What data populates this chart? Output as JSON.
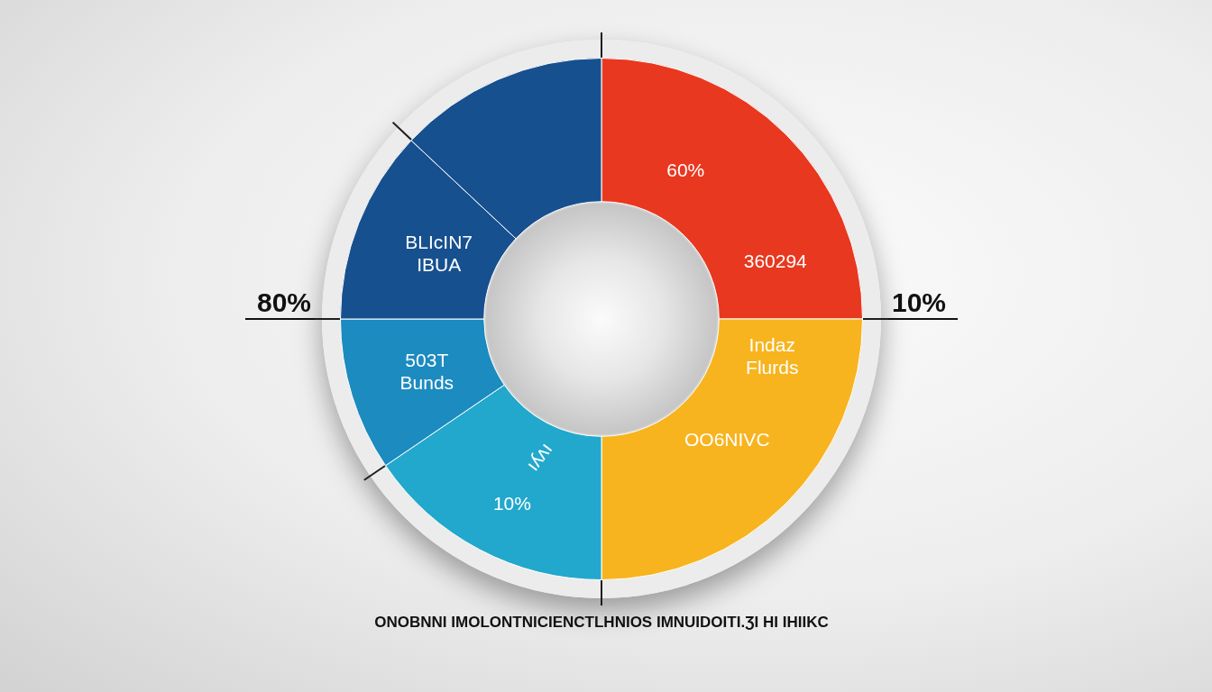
{
  "chart_data": {
    "type": "donut",
    "categories": [
      "360294",
      "Indaz Flurds",
      "ıʎʌı",
      "503T Bunds",
      "BLIcIN7 IBUA",
      null
    ],
    "values": [
      25,
      25,
      15.5,
      9.5,
      12,
      13
    ],
    "colors": [
      "#e8381f",
      "#f7b41f",
      "#22a8cc",
      "#1c8bbf",
      "#17508f",
      "#17508f"
    ],
    "annotations": [
      "80%",
      "10%",
      "ONOBNNI IMOLONTNICIENCTLHNIOS IMNUIDOITI.ƷI HI IHIIKC",
      {
        "text": "60%",
        "x": "360294"
      },
      {
        "text": "OO6NIVC",
        "x": "Indaz Flurds"
      },
      {
        "text": "10%",
        "x": "ıʎʌı"
      }
    ]
  }
}
